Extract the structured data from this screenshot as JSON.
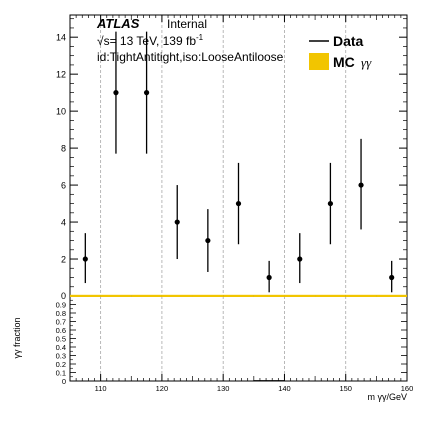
{
  "chart_data": [
    {
      "type": "scatter",
      "panel": "main",
      "x": [
        107.5,
        112.5,
        117.5,
        122.5,
        127.5,
        132.5,
        137.5,
        142.5,
        147.5,
        152.5,
        157.5
      ],
      "series": [
        {
          "name": "Data",
          "values": [
            2,
            11,
            11,
            4,
            3,
            5,
            1,
            2,
            5,
            6,
            1
          ],
          "err_low": [
            1.3,
            3.3,
            3.3,
            2.0,
            1.7,
            2.2,
            0.8,
            1.3,
            2.2,
            2.4,
            0.8
          ],
          "err_high": [
            1.4,
            3.3,
            3.3,
            2.0,
            1.7,
            2.2,
            0.9,
            1.4,
            2.2,
            2.5,
            0.9
          ],
          "color": "#000000"
        },
        {
          "name": "MC γγ",
          "values": [
            0,
            0,
            0,
            0,
            0,
            0,
            0,
            0,
            0,
            0,
            0
          ],
          "color": "#f2c500"
        }
      ],
      "xlim": [
        105,
        160
      ],
      "ylim": [
        0,
        15.2
      ],
      "yticks": [
        2,
        4,
        6,
        8,
        10,
        12,
        14
      ],
      "grid_x": true,
      "legend_position": "top-right"
    },
    {
      "type": "line",
      "panel": "ratio",
      "x": [
        107.5,
        112.5,
        117.5,
        122.5,
        127.5,
        132.5,
        137.5,
        142.5,
        147.5,
        152.5,
        157.5
      ],
      "series": [
        {
          "values": [
            0,
            0,
            0,
            0,
            0,
            0,
            0.005,
            0,
            0,
            0,
            0
          ],
          "color": "#000000"
        }
      ],
      "xlim": [
        105,
        160
      ],
      "ylim": [
        0,
        1.0
      ],
      "yticks": [
        0,
        0.1,
        0.2,
        0.3,
        0.4,
        0.5,
        0.6,
        0.7,
        0.8,
        0.9
      ],
      "xticks": [
        110,
        120,
        130,
        140,
        150,
        160
      ],
      "ylabel": "γγ fraction",
      "xlabel": "m  γγ/GeV"
    }
  ],
  "labels": {
    "atlas": "ATLAS",
    "internal": "Internal",
    "energy": "√s= 13 TeV, 139 fb",
    "energy_sup": "-1",
    "selection": "id:TightAntitight,iso:LooseAntiloose",
    "legend_data": "Data",
    "legend_mc": "MC",
    "legend_mc_sub": "γγ",
    "ratio_ylabel": "γγ fraction",
    "xlabel": "m  γγ/GeV",
    "main_zero_label": "0"
  },
  "colors": {
    "mc": "#f2c500",
    "grid": "#a8a8a8"
  }
}
